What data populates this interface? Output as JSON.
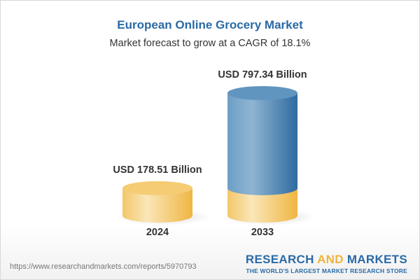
{
  "title": "European Online Grocery Market",
  "subtitle": "Market forecast to grow at a CAGR of 18.1%",
  "chart_data": {
    "type": "bar",
    "style": "3d-cylinder",
    "categories": [
      "2024",
      "2033"
    ],
    "values": [
      178.51,
      797.34
    ],
    "data_labels": [
      "USD 178.51 Billion",
      "USD 797.34 Billion"
    ],
    "unit": "USD Billion",
    "colors": {
      "base": "#f2c063",
      "growth": "#4f86b8"
    },
    "grid": false
  },
  "footer": {
    "url": "https://www.researchandmarkets.com/reports/5970793",
    "logo_part1": "RESEARCH ",
    "logo_part2": "AND",
    "logo_part3": " MARKETS",
    "tagline": "THE WORLD'S LARGEST MARKET RESEARCH STORE"
  }
}
